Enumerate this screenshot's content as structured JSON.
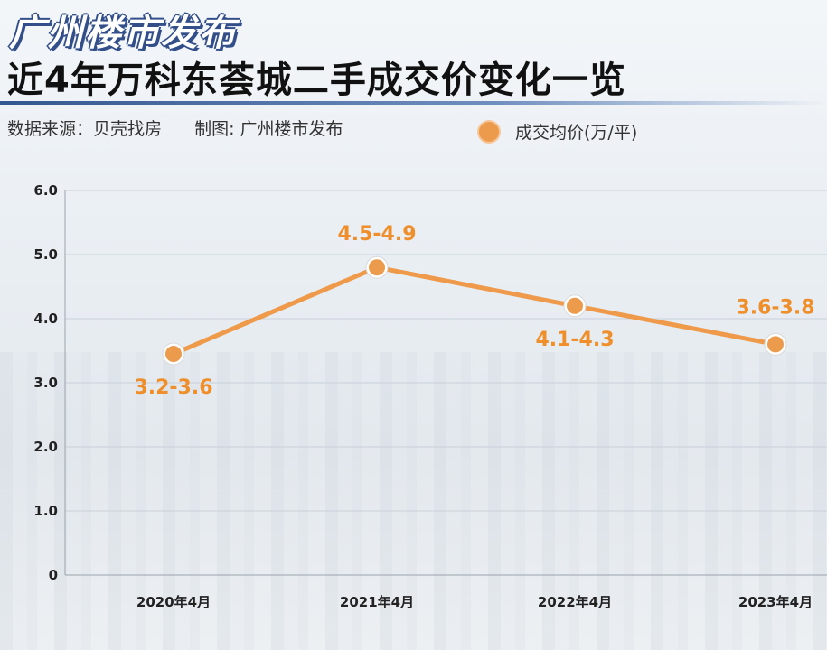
{
  "brand": "广州楼市发布",
  "title": "近4年万科东荟城二手成交价变化一览",
  "source": "数据来源：贝壳找房",
  "credit": "制图: 广州楼市发布",
  "colors": {
    "line": "#ee9a4a",
    "marker": "#ec9b4d",
    "label": "#ee8f2c",
    "title_rule": "#34578f"
  },
  "chart_data": {
    "type": "line",
    "categories": [
      "2020年4月",
      "2021年4月",
      "2022年4月",
      "2023年4月"
    ],
    "series": [
      {
        "name": "成交均价(万/平)",
        "values": [
          3.45,
          4.8,
          4.2,
          3.6
        ],
        "labels": [
          "3.2-3.6",
          "4.5-4.9",
          "4.1-4.3",
          "3.6-3.8"
        ]
      }
    ],
    "yticks": [
      "6.0",
      "5.0",
      "4.0",
      "3.0",
      "2.0",
      "1.0",
      "0"
    ],
    "ylim": [
      0,
      6
    ],
    "grid": true,
    "legend_position": "top-right"
  }
}
